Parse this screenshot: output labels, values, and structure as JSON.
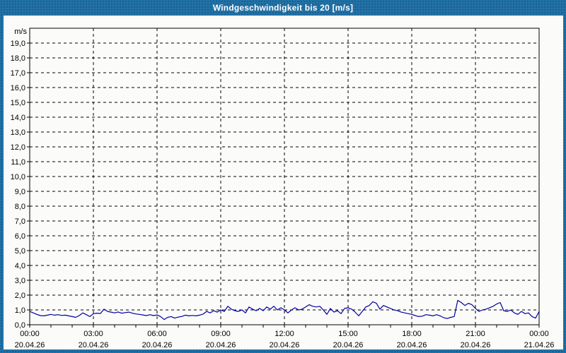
{
  "window": {
    "title": "Windgeschwindigkeit bis 20 [m/s]"
  },
  "colors": {
    "title_bar_bg": "#2172A7",
    "title_text": "#FFFFFF",
    "page_border": "#2172A7",
    "panel_bg": "#FBFCFA",
    "grid": "#000000",
    "axis": "#000000",
    "label_text": "#000000",
    "line": "#0000A0"
  },
  "chart_data": {
    "type": "line",
    "title": "Windgeschwindigkeit bis 20 [m/s]",
    "ylabel": "m/s",
    "ylim": [
      0,
      20
    ],
    "y_tick_step": 1.0,
    "y_tick_labels": [
      "0,0",
      "1,0",
      "2,0",
      "3,0",
      "4,0",
      "5,0",
      "6,0",
      "7,0",
      "8,0",
      "9,0",
      "10,0",
      "11,0",
      "12,0",
      "13,0",
      "14,0",
      "15,0",
      "16,0",
      "17,0",
      "18,0",
      "19,0"
    ],
    "x_range_hours": [
      0,
      24
    ],
    "x_minor_tick_hours": 1,
    "x_major_tick_hours": 3,
    "grid": "dashed",
    "legend": "none",
    "x_ticks": [
      {
        "hour": 0,
        "time": "00:00",
        "date": "20.04.26"
      },
      {
        "hour": 3,
        "time": "03:00",
        "date": "20.04.26"
      },
      {
        "hour": 6,
        "time": "06:00",
        "date": "20.04.26"
      },
      {
        "hour": 9,
        "time": "09:00",
        "date": "20.04.26"
      },
      {
        "hour": 12,
        "time": "12:00",
        "date": "20.04.26"
      },
      {
        "hour": 15,
        "time": "15:00",
        "date": "20.04.26"
      },
      {
        "hour": 18,
        "time": "18:00",
        "date": "20.04.26"
      },
      {
        "hour": 21,
        "time": "21:00",
        "date": "20.04.26"
      },
      {
        "hour": 24,
        "time": "00:00",
        "date": "21.04.26"
      }
    ],
    "series": [
      {
        "name": "Windgeschwindigkeit",
        "unit": "m/s",
        "interval_minutes": 10,
        "values": [
          0.9,
          0.8,
          0.7,
          0.62,
          0.6,
          0.65,
          0.7,
          0.65,
          0.68,
          0.63,
          0.65,
          0.6,
          0.55,
          0.5,
          0.62,
          0.8,
          0.68,
          0.55,
          0.75,
          0.78,
          0.76,
          1.05,
          0.9,
          0.85,
          0.8,
          0.86,
          0.78,
          0.82,
          0.85,
          0.78,
          0.73,
          0.7,
          0.66,
          0.62,
          0.68,
          0.62,
          0.66,
          0.55,
          0.35,
          0.5,
          0.55,
          0.45,
          0.52,
          0.56,
          0.65,
          0.6,
          0.63,
          0.6,
          0.65,
          0.72,
          0.9,
          0.8,
          0.95,
          0.85,
          1.0,
          0.9,
          1.25,
          1.05,
          0.95,
          0.9,
          1.0,
          0.8,
          1.2,
          1.05,
          0.95,
          1.1,
          0.95,
          1.2,
          1.05,
          1.25,
          1.0,
          1.15,
          1.0,
          0.8,
          1.0,
          1.15,
          1.0,
          1.05,
          1.2,
          1.35,
          1.25,
          1.2,
          1.25,
          1.0,
          0.7,
          1.1,
          0.85,
          0.95,
          0.75,
          1.1,
          1.15,
          1.05,
          0.85,
          0.6,
          0.9,
          1.2,
          1.3,
          1.55,
          1.45,
          1.05,
          1.3,
          1.2,
          1.1,
          1.0,
          0.95,
          0.85,
          0.8,
          0.75,
          0.7,
          0.62,
          0.55,
          0.58,
          0.68,
          0.65,
          0.6,
          0.68,
          0.6,
          0.48,
          0.42,
          0.5,
          0.55,
          1.65,
          1.5,
          1.3,
          1.45,
          1.35,
          1.1,
          0.9,
          1.0,
          1.05,
          1.15,
          1.25,
          1.4,
          1.5,
          0.95,
          0.9,
          1.0,
          0.8,
          0.7,
          0.9,
          0.75,
          0.8,
          0.55,
          0.45,
          0.9
        ]
      }
    ]
  }
}
